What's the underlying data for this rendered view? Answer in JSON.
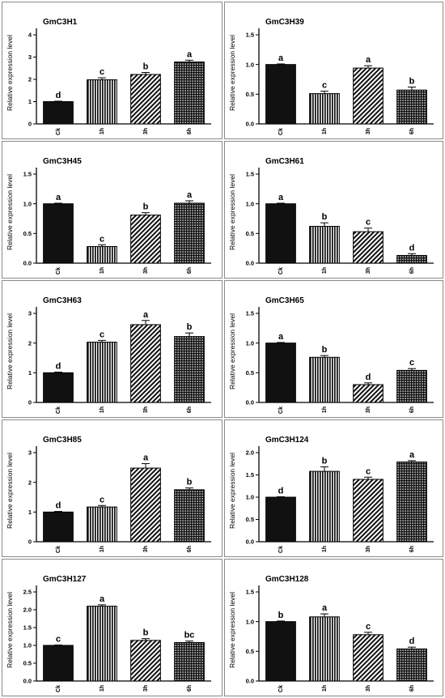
{
  "chart_data": [
    {
      "type": "bar",
      "title": "GmC3H1",
      "ylabel": "Relative expression level",
      "categories": [
        "Ck",
        "1h",
        "3h",
        "6h"
      ],
      "values": [
        1.0,
        1.98,
        2.22,
        2.78
      ],
      "errors": [
        0.02,
        0.09,
        0.09,
        0.08
      ],
      "letters": [
        "d",
        "c",
        "b",
        "a"
      ],
      "ylim": [
        0,
        4
      ],
      "yticks": [
        "0",
        "1",
        "2",
        "3",
        "4"
      ]
    },
    {
      "type": "bar",
      "title": "GmC3H39",
      "ylabel": "Relative expression level",
      "categories": [
        "Ck",
        "1h",
        "3h",
        "6h"
      ],
      "values": [
        1.0,
        0.51,
        0.94,
        0.57
      ],
      "errors": [
        0.01,
        0.04,
        0.04,
        0.05
      ],
      "letters": [
        "a",
        "c",
        "a",
        "b"
      ],
      "ylim": [
        0,
        1.5
      ],
      "yticks": [
        "0.0",
        "0.5",
        "1.0",
        "1.5"
      ]
    },
    {
      "type": "bar",
      "title": "GmC3H45",
      "ylabel": "Relative expression level",
      "categories": [
        "Ck",
        "1h",
        "3h",
        "6h"
      ],
      "values": [
        1.0,
        0.28,
        0.81,
        1.01
      ],
      "errors": [
        0.01,
        0.03,
        0.04,
        0.04
      ],
      "letters": [
        "a",
        "c",
        "b",
        "a"
      ],
      "ylim": [
        0,
        1.5
      ],
      "yticks": [
        "0.0",
        "0.5",
        "1.0",
        "1.5"
      ]
    },
    {
      "type": "bar",
      "title": "GmC3H61",
      "ylabel": "Relative expression level",
      "categories": [
        "Ck",
        "1h",
        "3h",
        "6h"
      ],
      "values": [
        1.0,
        0.62,
        0.53,
        0.13
      ],
      "errors": [
        0.01,
        0.06,
        0.06,
        0.03
      ],
      "letters": [
        "a",
        "b",
        "c",
        "d"
      ],
      "ylim": [
        0,
        1.5
      ],
      "yticks": [
        "0.0",
        "0.5",
        "1.0",
        "1.5"
      ]
    },
    {
      "type": "bar",
      "title": "GmC3H63",
      "ylabel": "Relative expression level",
      "categories": [
        "Ck",
        "1h",
        "3h",
        "6h"
      ],
      "values": [
        1.0,
        2.03,
        2.62,
        2.22
      ],
      "errors": [
        0.02,
        0.06,
        0.14,
        0.12
      ],
      "letters": [
        "d",
        "c",
        "a",
        "b"
      ],
      "ylim": [
        0,
        3
      ],
      "yticks": [
        "0",
        "1",
        "2",
        "3"
      ]
    },
    {
      "type": "bar",
      "title": "GmC3H65",
      "ylabel": "Relative expression level",
      "categories": [
        "Ck",
        "1h",
        "3h",
        "6h"
      ],
      "values": [
        1.0,
        0.76,
        0.3,
        0.54
      ],
      "errors": [
        0.01,
        0.03,
        0.03,
        0.03
      ],
      "letters": [
        "a",
        "b",
        "d",
        "c"
      ],
      "ylim": [
        0,
        1.5
      ],
      "yticks": [
        "0.0",
        "0.5",
        "1.0",
        "1.5"
      ]
    },
    {
      "type": "bar",
      "title": "GmC3H85",
      "ylabel": "Relative expression level",
      "categories": [
        "Ck",
        "1h",
        "3h",
        "6h"
      ],
      "values": [
        1.0,
        1.17,
        2.48,
        1.75
      ],
      "errors": [
        0.02,
        0.05,
        0.15,
        0.06
      ],
      "letters": [
        "d",
        "c",
        "a",
        "b"
      ],
      "ylim": [
        0,
        3
      ],
      "yticks": [
        "0",
        "1",
        "2",
        "3"
      ]
    },
    {
      "type": "bar",
      "title": "GmC3H124",
      "ylabel": "Relative expression level",
      "categories": [
        "Ck",
        "1h",
        "3h",
        "6h"
      ],
      "values": [
        1.0,
        1.58,
        1.4,
        1.79
      ],
      "errors": [
        0.01,
        0.1,
        0.05,
        0.03
      ],
      "letters": [
        "d",
        "b",
        "c",
        "a"
      ],
      "ylim": [
        0,
        2
      ],
      "yticks": [
        "0.0",
        "0.5",
        "1.0",
        "1.5",
        "2.0"
      ]
    },
    {
      "type": "bar",
      "title": "GmC3H127",
      "ylabel": "Relative expression level",
      "categories": [
        "Ck",
        "1h",
        "3h",
        "6h"
      ],
      "values": [
        1.0,
        2.1,
        1.14,
        1.08
      ],
      "errors": [
        0.01,
        0.04,
        0.05,
        0.04
      ],
      "letters": [
        "c",
        "a",
        "b",
        "bc"
      ],
      "ylim": [
        0,
        2.5
      ],
      "yticks": [
        "0.0",
        "0.5",
        "1.0",
        "1.5",
        "2.0",
        "2.5"
      ]
    },
    {
      "type": "bar",
      "title": "GmC3H128",
      "ylabel": "Relative expression level",
      "categories": [
        "Ck",
        "1h",
        "3h",
        "6h"
      ],
      "values": [
        1.0,
        1.08,
        0.78,
        0.54
      ],
      "errors": [
        0.01,
        0.05,
        0.04,
        0.03
      ],
      "letters": [
        "b",
        "a",
        "c",
        "d"
      ],
      "ylim": [
        0,
        1.5
      ],
      "yticks": [
        "0.0",
        "0.5",
        "1.0",
        "1.5"
      ]
    }
  ],
  "bar_fills": [
    "solid",
    "vertical-lines",
    "diagonal-lines",
    "checker"
  ],
  "colors": {
    "bar_dark": "#111111",
    "bar_light": "#ffffff",
    "axis": "#000000",
    "panel_border": "#8a8a8a"
  }
}
